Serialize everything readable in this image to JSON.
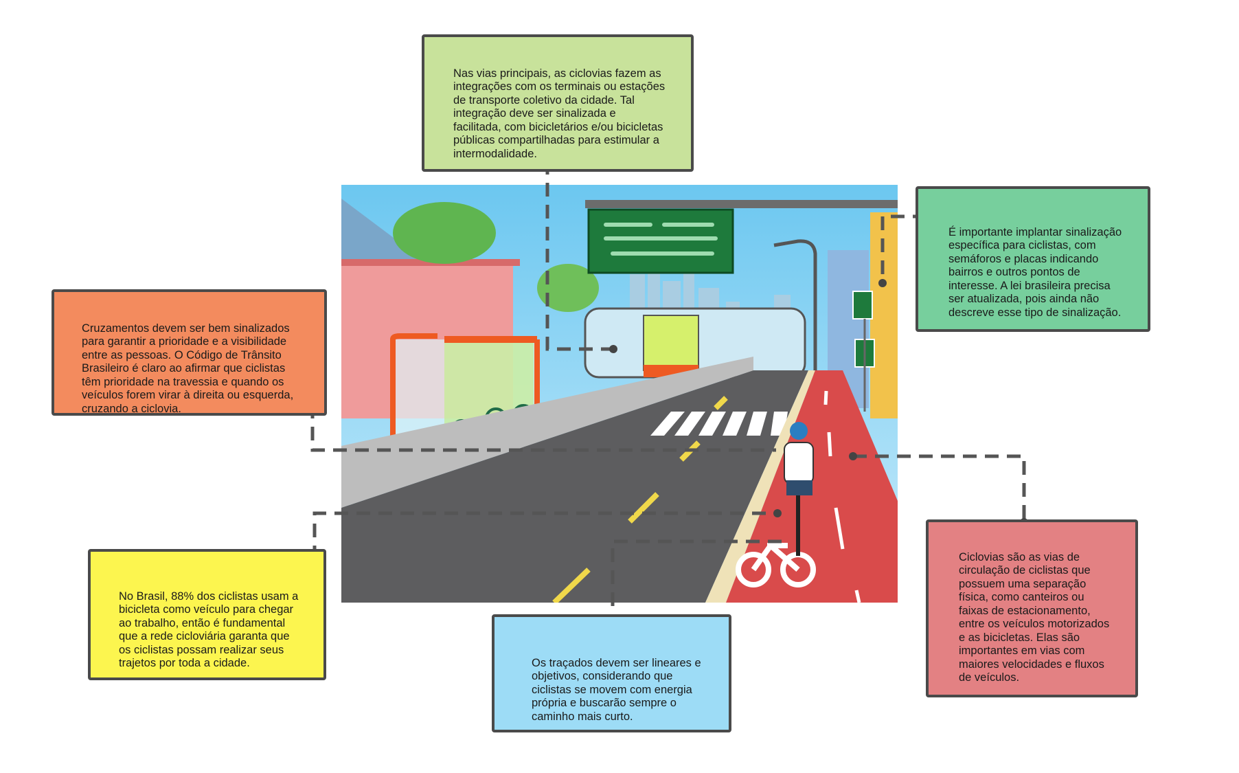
{
  "notes": {
    "top_green": "Nas vias principais, as ciclovias fazem as integrações com os terminais ou estações de transporte coletivo da cidade. Tal integração deve ser sinalizada e facilitada, com bicicletários e/ou bicicletas públicas compartilhadas para estimular a intermodalidade.",
    "right_teal": "É importante implantar sinalização específica para ciclistas, com semáforos e placas indicando bairros e outros pontos de interesse. A lei brasileira precisa ser atualizada, pois ainda não descreve esse tipo de sinalização.",
    "left_orange": "Cruzamentos devem ser bem sinalizados para garantir a prioridade e a visibilidade entre as pessoas. O Código de Trânsito Brasileiro é claro ao afirmar que ciclistas têm prioridade na travessia e quando os veículos forem virar à direita ou esquerda, cruzando a ciclovia.",
    "right_red": "Ciclovias são as vias de circulação de ciclistas que possuem uma separação física, como canteiros ou faixas de estacionamento, entre os veículos motorizados e as bicicletas. Elas são importantes em vias com maiores velocidades e fluxos de veículos.",
    "bottom_blue": "Os traçados devem ser lineares e objetivos, considerando que ciclistas se movem com energia própria e buscarão sempre o caminho mais curto.",
    "left_yellow": "No Brasil, 88% dos ciclistas usam a bicicleta como veículo para chegar ao trabalho, então é fundamental que a rede cicloviária garanta que os ciclistas possam realizar seus trajetos por toda a cidade."
  },
  "colors": {
    "top_green": "#c8e29b",
    "right_teal": "#77cf9d",
    "left_orange": "#f38b5e",
    "right_red": "#e38183",
    "bottom_blue": "#9ddcf6",
    "left_yellow": "#fcf54f",
    "bike_lane": "#d94b4b",
    "road": "#5d5d5f",
    "sign": "#1e7a3c"
  },
  "icons": {
    "bike_lane_symbol": "bicycle-icon",
    "direction_arrows": "arrow-icon"
  }
}
